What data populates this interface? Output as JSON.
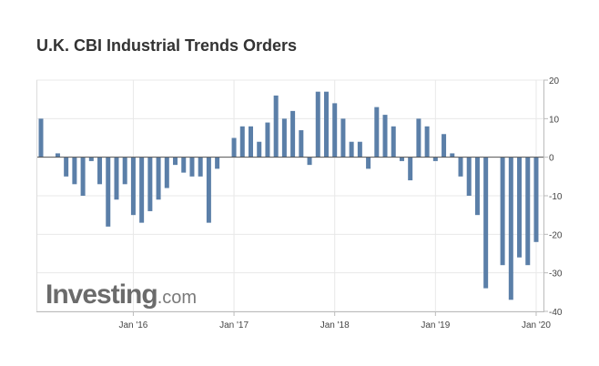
{
  "chart_data": {
    "type": "bar",
    "title": "U.K. CBI Industrial Trends Orders",
    "xlabel": "",
    "ylabel": "",
    "ylim": [
      -40,
      20
    ],
    "yticks": [
      20,
      10,
      0,
      -10,
      -20,
      -30,
      -40
    ],
    "x_tick_labels": [
      "Jan '16",
      "Jan '17",
      "Jan '18",
      "Jan '19",
      "Jan '20"
    ],
    "x_tick_dates": [
      "2016-01",
      "2017-01",
      "2018-01",
      "2019-01",
      "2020-01"
    ],
    "grid": true,
    "y_axis_position": "right",
    "bar_color": "#5b7fa8",
    "categories": [
      "2015-02",
      "2015-03",
      "2015-04",
      "2015-05",
      "2015-06",
      "2015-07",
      "2015-08",
      "2015-09",
      "2015-10",
      "2015-11",
      "2015-12",
      "2016-01",
      "2016-02",
      "2016-03",
      "2016-04",
      "2016-05",
      "2016-06",
      "2016-07",
      "2016-08",
      "2016-09",
      "2016-10",
      "2016-11",
      "2016-12",
      "2017-01",
      "2017-02",
      "2017-03",
      "2017-04",
      "2017-05",
      "2017-06",
      "2017-07",
      "2017-08",
      "2017-09",
      "2017-10",
      "2017-11",
      "2017-12",
      "2018-01",
      "2018-02",
      "2018-03",
      "2018-04",
      "2018-05",
      "2018-06",
      "2018-07",
      "2018-08",
      "2018-09",
      "2018-10",
      "2018-11",
      "2018-12",
      "2019-01",
      "2019-02",
      "2019-03",
      "2019-04",
      "2019-05",
      "2019-06",
      "2019-07",
      "2019-08",
      "2019-09",
      "2019-10",
      "2019-11",
      "2019-12",
      "2020-01"
    ],
    "values": [
      10,
      0,
      1,
      -5,
      -7,
      -10,
      -1,
      -7,
      -18,
      -11,
      -7,
      -15,
      -17,
      -14,
      -11,
      -8,
      -2,
      -4,
      -5,
      -5,
      -17,
      -3,
      0,
      5,
      8,
      8,
      4,
      9,
      16,
      10,
      12,
      7,
      -2,
      17,
      17,
      14,
      10,
      4,
      4,
      -3,
      13,
      11,
      8,
      -1,
      -6,
      10,
      8,
      -1,
      6,
      1,
      -5,
      -10,
      -15,
      -34,
      0,
      -28,
      -37,
      -26,
      -28,
      -22
    ]
  },
  "watermark": {
    "brand": "Investing",
    "suffix": ".com"
  }
}
